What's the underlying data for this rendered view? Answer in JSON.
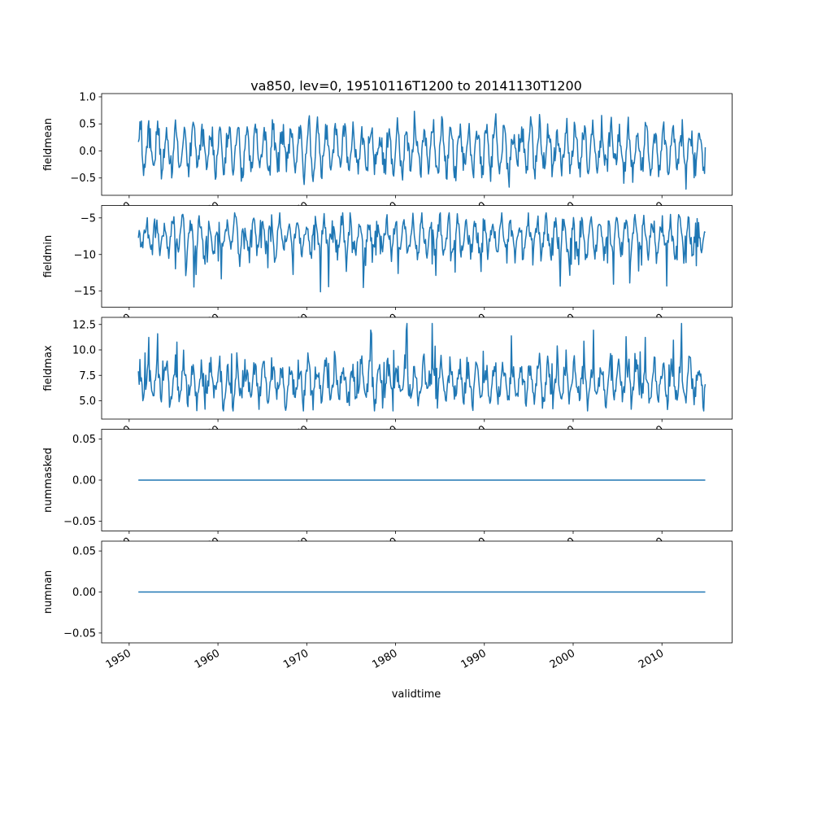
{
  "chart_data": {
    "type": "line",
    "title": "va850, lev=0, 19510116T1200 to 20141130T1200",
    "xlabel": "validtime",
    "x": {
      "start_year": 1951.042,
      "end_year": 2014.875,
      "samples_per_year": 12,
      "xlim": [
        1946.9,
        2017.9
      ],
      "ticks": [
        1950,
        1960,
        1970,
        1980,
        1990,
        2000,
        2010
      ],
      "tick_labels": [
        "1950",
        "1960",
        "1970",
        "1980",
        "1990",
        "2000",
        "2010"
      ],
      "tick_rotation_deg": 30
    },
    "line": {
      "color": "#1f77b4",
      "width": 1.5
    },
    "subplots": [
      {
        "id": "fieldmean",
        "ylabel": "fieldmean",
        "ylim": [
          -0.82,
          1.06
        ],
        "yticks": [
          1.0,
          0.5,
          0.0,
          -0.5
        ],
        "ytick_labels": [
          "1.0",
          "0.5",
          "0.0",
          "−0.5"
        ],
        "series": {
          "kind": "seasonal_noise",
          "seed": 42,
          "base": 0.02,
          "seasonal_amp": 0.38,
          "seasonal_phase": 0.4,
          "amp_var": 0.55,
          "noise_amp": 0.17,
          "spike_prob": 0.03,
          "spike_amp": 0.3,
          "clip": [
            -0.78,
            0.97
          ]
        }
      },
      {
        "id": "fieldmin",
        "ylabel": "fieldmin",
        "ylim": [
          -17.2,
          -3.3
        ],
        "yticks": [
          -5,
          -10,
          -15
        ],
        "ytick_labels": [
          "−5",
          "−10",
          "−15"
        ],
        "series": {
          "kind": "seasonal_noise",
          "seed": 7,
          "base": -7.6,
          "seasonal_amp": 2.1,
          "seasonal_phase": 2.1,
          "amp_var": 0.6,
          "noise_amp": 1.0,
          "spike_prob": 0.07,
          "spike_amp": -4.5,
          "clip": [
            -16.9,
            -4.3
          ]
        }
      },
      {
        "id": "fieldmax",
        "ylabel": "fieldmax",
        "ylim": [
          3.2,
          13.2
        ],
        "yticks": [
          5.0,
          7.5,
          10.0,
          12.5
        ],
        "ytick_labels": [
          "5.0",
          "7.5",
          "10.0",
          "12.5"
        ],
        "series": {
          "kind": "seasonal_noise",
          "seed": 13,
          "base": 6.8,
          "seasonal_amp": 1.6,
          "seasonal_phase": 0.9,
          "amp_var": 0.6,
          "noise_amp": 0.9,
          "spike_prob": 0.06,
          "spike_amp": 4.3,
          "clip": [
            4.0,
            12.6
          ]
        }
      },
      {
        "id": "nummasked",
        "ylabel": "nummasked",
        "ylim": [
          -0.062,
          0.062
        ],
        "yticks": [
          0.05,
          0.0,
          -0.05
        ],
        "ytick_labels": [
          "0.05",
          "0.00",
          "−0.05"
        ],
        "series": {
          "kind": "constant",
          "value": 0
        }
      },
      {
        "id": "numnan",
        "ylabel": "numnan",
        "ylim": [
          -0.062,
          0.062
        ],
        "yticks": [
          0.05,
          0.0,
          -0.05
        ],
        "ytick_labels": [
          "0.05",
          "0.00",
          "−0.05"
        ],
        "series": {
          "kind": "constant",
          "value": 0
        }
      }
    ]
  }
}
